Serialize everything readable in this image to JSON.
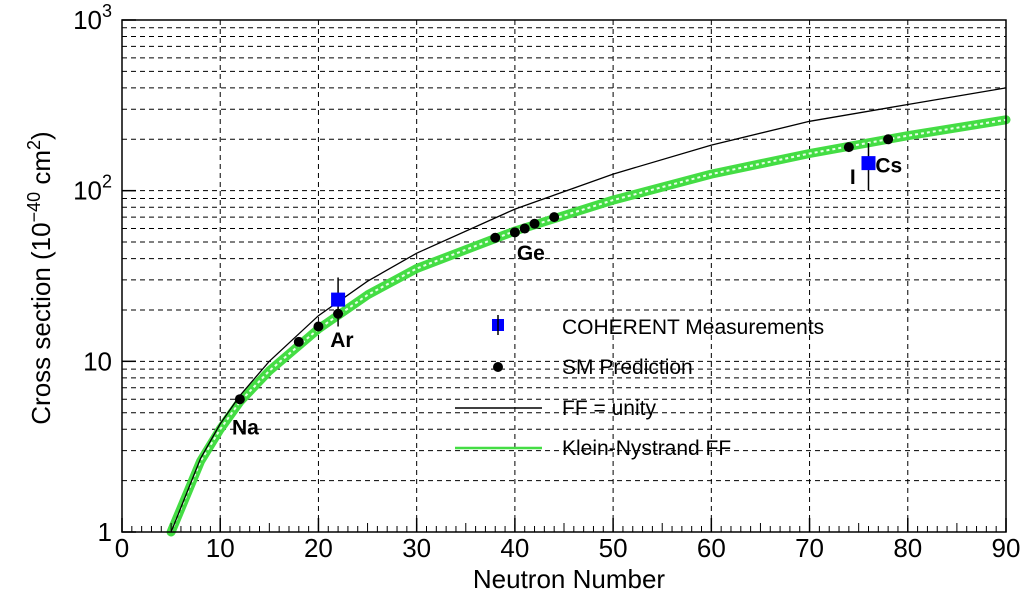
{
  "chart_data": {
    "type": "scatter",
    "xlabel": "Neutron Number",
    "ylabel": "Cross section (10",
    "ylabel_sup": "−40",
    "ylabel_unit": " cm",
    "ylabel_unit_sup": "2",
    "ylabel_close": ")",
    "xlim": [
      0,
      90
    ],
    "ylim": [
      1,
      1000
    ],
    "yscale": "log",
    "grid": true,
    "x_ticks": [
      "0",
      "10",
      "20",
      "30",
      "40",
      "50",
      "60",
      "70",
      "80",
      "90"
    ],
    "y_ticks": [
      {
        "label": "1",
        "value": 1
      },
      {
        "label": "10",
        "value": 10
      },
      {
        "label": "10",
        "sup": "2",
        "value": 100
      },
      {
        "label": "10",
        "sup": "3",
        "value": 1000
      }
    ],
    "legend_position": "center-right",
    "series": [
      {
        "name": "COHERENT Measurements",
        "kind": "points_with_error",
        "color": "#0000ff",
        "points": [
          {
            "x": 22,
            "y": 23,
            "ylow": 16,
            "yhigh": 31
          },
          {
            "x": 76,
            "y": 145,
            "ylow": 100,
            "yhigh": 190
          }
        ]
      },
      {
        "name": "SM Prediction",
        "kind": "points",
        "color": "#000000",
        "points": [
          {
            "x": 12,
            "y": 6
          },
          {
            "x": 18,
            "y": 13
          },
          {
            "x": 20,
            "y": 16
          },
          {
            "x": 22,
            "y": 19
          },
          {
            "x": 38,
            "y": 53
          },
          {
            "x": 40,
            "y": 57
          },
          {
            "x": 41,
            "y": 60
          },
          {
            "x": 42,
            "y": 64
          },
          {
            "x": 44,
            "y": 70
          },
          {
            "x": 74,
            "y": 180
          },
          {
            "x": 78,
            "y": 200
          }
        ]
      },
      {
        "name": "FF = unity",
        "kind": "line",
        "color": "#000000",
        "x": [
          5,
          8,
          10,
          12,
          15,
          20,
          25,
          30,
          40,
          50,
          60,
          70,
          80,
          90
        ],
        "y": [
          1,
          2.7,
          4.3,
          6.3,
          10,
          18.5,
          29.5,
          43,
          78,
          125,
          185,
          255,
          320,
          400
        ]
      },
      {
        "name": "Klein-Nystrand FF",
        "kind": "band",
        "color": "#44dd44",
        "x": [
          5,
          8,
          10,
          12,
          15,
          20,
          25,
          30,
          40,
          50,
          60,
          70,
          80,
          90
        ],
        "y": [
          1,
          2.6,
          4,
          5.8,
          8.8,
          15.5,
          24.5,
          35,
          58,
          88,
          125,
          165,
          210,
          260
        ]
      }
    ],
    "annotations": [
      {
        "text": "Na",
        "x": 11.2,
        "y": 4.1
      },
      {
        "text": "Ar",
        "x": 21.2,
        "y": 13.3
      },
      {
        "text": "Ge",
        "x": 40.2,
        "y": 43
      },
      {
        "text": "I",
        "x": 74.1,
        "y": 120
      },
      {
        "text": "Cs",
        "x": 76.7,
        "y": 140
      }
    ]
  }
}
